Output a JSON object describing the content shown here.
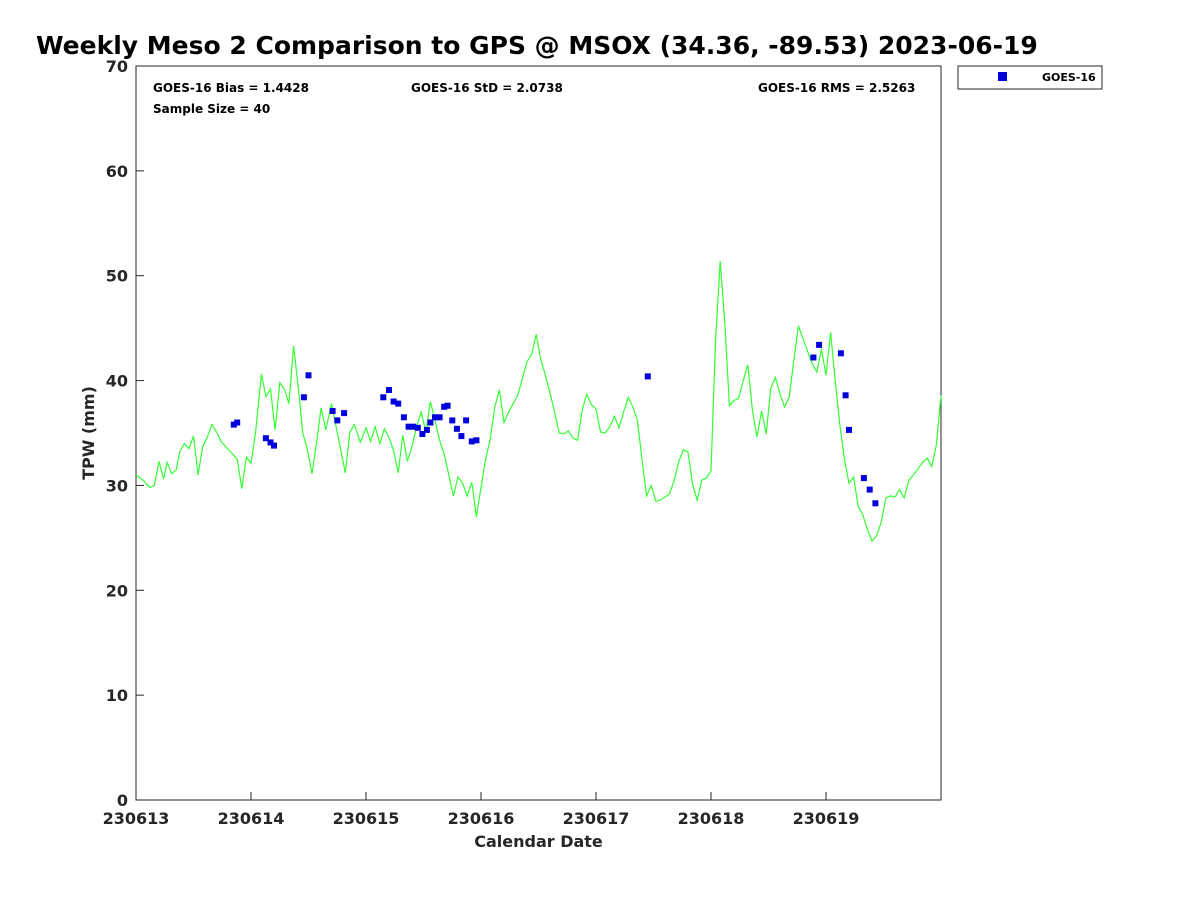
{
  "chart_data": {
    "type": "scatter",
    "title": "Weekly Meso 2 Comparison to GPS @ MSOX (34.36, -89.53) 2023-06-19",
    "xlabel": "Calendar Date",
    "ylabel": "TPW (mm)",
    "xlim": [
      0,
      7
    ],
    "ylim": [
      0,
      70
    ],
    "x_ticks": [
      0,
      1,
      2,
      3,
      4,
      5,
      6
    ],
    "x_tick_labels": [
      "230613",
      "230614",
      "230615",
      "230616",
      "230617",
      "230618",
      "230619"
    ],
    "y_ticks": [
      0,
      10,
      20,
      30,
      40,
      50,
      60,
      70
    ],
    "y_tick_labels": [
      "0",
      "10",
      "20",
      "30",
      "40",
      "50",
      "60",
      "70"
    ],
    "stats": {
      "bias": "GOES-16 Bias = 1.4428",
      "std": "GOES-16 StD = 2.0738",
      "rms": "GOES-16 RMS = 2.5263",
      "sample": "Sample Size = 40"
    },
    "legend": {
      "position": "top-right-outside",
      "label": "GOES-16"
    },
    "colors": {
      "gps_line": "#33ff33",
      "goes_marker": "#0000dd",
      "axis": "#262626"
    },
    "series": [
      {
        "name": "GPS",
        "style": "line",
        "x": [
          0.0,
          0.07,
          0.12,
          0.16,
          0.2,
          0.24,
          0.27,
          0.31,
          0.35,
          0.38,
          0.42,
          0.46,
          0.5,
          0.54,
          0.58,
          0.62,
          0.66,
          0.7,
          0.74,
          0.78,
          0.83,
          0.88,
          0.92,
          0.96,
          1.0,
          1.04,
          1.09,
          1.13,
          1.17,
          1.21,
          1.25,
          1.29,
          1.33,
          1.37,
          1.41,
          1.45,
          1.49,
          1.53,
          1.57,
          1.61,
          1.65,
          1.7,
          1.74,
          1.78,
          1.82,
          1.86,
          1.9,
          1.95,
          2.0,
          2.04,
          2.08,
          2.12,
          2.16,
          2.2,
          2.24,
          2.28,
          2.32,
          2.36,
          2.4,
          2.44,
          2.48,
          2.52,
          2.56,
          2.6,
          2.64,
          2.68,
          2.72,
          2.76,
          2.8,
          2.84,
          2.88,
          2.92,
          2.96,
          3.0,
          3.04,
          3.08,
          3.12,
          3.16,
          3.2,
          3.24,
          3.28,
          3.32,
          3.36,
          3.4,
          3.44,
          3.48,
          3.52,
          3.56,
          3.6,
          3.64,
          3.68,
          3.72,
          3.76,
          3.8,
          3.84,
          3.88,
          3.92,
          3.96,
          4.0,
          4.04,
          4.08,
          4.12,
          4.16,
          4.2,
          4.24,
          4.28,
          4.32,
          4.36,
          4.4,
          4.44,
          4.48,
          4.52,
          4.56,
          4.6,
          4.64,
          4.68,
          4.72,
          4.76,
          4.8,
          4.84,
          4.88,
          4.92,
          4.96,
          5.0,
          5.04,
          5.08,
          5.12,
          5.16,
          5.2,
          5.24,
          5.28,
          5.32,
          5.36,
          5.4,
          5.44,
          5.48,
          5.52,
          5.56,
          5.6,
          5.64,
          5.68,
          5.72,
          5.76,
          5.8,
          5.84,
          5.88,
          5.92,
          5.96,
          6.0,
          6.04,
          6.08,
          6.12,
          6.16,
          6.2,
          6.24,
          6.28,
          6.32,
          6.36,
          6.4,
          6.44,
          6.48,
          6.52,
          6.56,
          6.6,
          6.64,
          6.68,
          6.72,
          6.76,
          6.8,
          6.84,
          6.88,
          6.92,
          6.96,
          7.0
        ],
        "y": [
          31.0,
          30.4,
          29.8,
          30.0,
          32.3,
          30.6,
          32.2,
          31.1,
          31.5,
          33.2,
          34.0,
          33.5,
          34.7,
          31.0,
          33.7,
          34.6,
          35.8,
          35.1,
          34.2,
          33.7,
          33.1,
          32.5,
          29.7,
          32.7,
          32.1,
          35.1,
          40.6,
          38.5,
          39.2,
          35.3,
          39.8,
          39.2,
          37.8,
          43.3,
          39.5,
          35.0,
          33.4,
          31.1,
          34.1,
          37.4,
          35.3,
          37.8,
          35.6,
          33.4,
          31.2,
          35.1,
          35.8,
          34.1,
          35.5,
          34.2,
          35.6,
          34.0,
          35.4,
          34.6,
          33.3,
          31.2,
          34.8,
          32.3,
          33.7,
          35.6,
          37.0,
          35.1,
          38.0,
          36.2,
          34.3,
          33.0,
          31.0,
          29.0,
          30.8,
          30.2,
          29.0,
          30.3,
          27.0,
          29.8,
          32.5,
          34.4,
          37.5,
          39.1,
          36.0,
          37.0,
          37.8,
          38.6,
          40.2,
          41.8,
          42.5,
          44.4,
          42.0,
          40.5,
          38.8,
          37.0,
          35.0,
          34.9,
          35.2,
          34.5,
          34.3,
          37.2,
          38.7,
          37.7,
          37.3,
          35.1,
          35.0,
          35.6,
          36.6,
          35.5,
          37.0,
          38.4,
          37.5,
          36.2,
          32.5,
          29.0,
          30.0,
          28.5,
          28.6,
          28.9,
          29.2,
          30.5,
          32.3,
          33.4,
          33.2,
          30.1,
          28.6,
          30.5,
          30.7,
          31.4,
          43.9,
          51.4,
          45.5,
          37.6,
          38.1,
          38.3,
          40.0,
          41.5,
          37.2,
          34.6,
          37.1,
          34.9,
          39.3,
          40.3,
          38.7,
          37.5,
          38.4,
          41.9,
          45.2,
          44.0,
          42.8,
          41.6,
          40.8,
          43.0,
          40.5,
          44.6,
          40.0,
          35.8,
          32.5,
          30.2,
          30.8,
          28.0,
          27.2,
          25.8,
          24.7,
          25.2,
          26.5,
          28.8,
          29.0,
          28.9,
          29.6,
          28.8,
          30.5,
          31.0,
          31.6,
          32.2,
          32.6,
          31.8,
          33.9,
          38.6
        ]
      },
      {
        "name": "GOES-16",
        "style": "marker",
        "x": [
          0.85,
          0.88,
          1.13,
          1.17,
          1.2,
          1.46,
          1.5,
          1.71,
          1.75,
          1.81,
          2.15,
          2.2,
          2.24,
          2.28,
          2.33,
          2.37,
          2.41,
          2.45,
          2.49,
          2.53,
          2.56,
          2.6,
          2.64,
          2.68,
          2.71,
          2.75,
          2.79,
          2.83,
          2.87,
          2.92,
          2.96,
          4.45,
          5.89,
          5.94,
          6.13,
          6.17,
          6.2,
          6.33,
          6.38,
          6.43
        ],
        "y": [
          35.8,
          36.0,
          34.5,
          34.1,
          33.8,
          38.4,
          40.5,
          37.1,
          36.2,
          36.9,
          38.4,
          39.1,
          38.0,
          37.8,
          36.5,
          35.6,
          35.6,
          35.5,
          34.9,
          35.3,
          36.0,
          36.5,
          36.5,
          37.5,
          37.6,
          36.2,
          35.4,
          34.7,
          36.2,
          34.2,
          34.3,
          40.4,
          42.2,
          43.4,
          42.6,
          38.6,
          35.3,
          30.7,
          29.6,
          28.3
        ]
      }
    ]
  }
}
